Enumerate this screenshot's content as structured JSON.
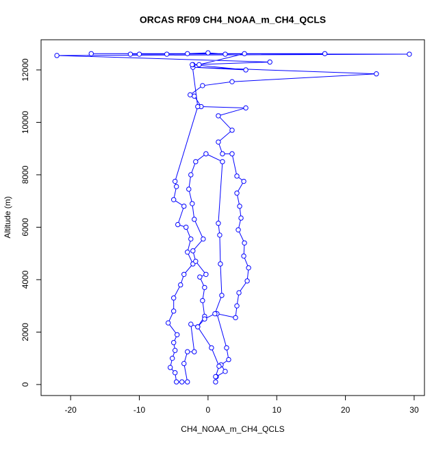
{
  "chart_data": {
    "type": "line",
    "title": "ORCAS RF09 CH4_NOAA_m_CH4_QCLS",
    "x_label": "CH4_NOAA_m_CH4_QCLS",
    "y_label": "Altitude (m)",
    "xlim": [
      -24.3,
      31.5
    ],
    "ylim": [
      -420,
      13150
    ],
    "xticks": [
      -20,
      -10,
      0,
      10,
      20,
      30
    ],
    "yticks": [
      0,
      2000,
      4000,
      6000,
      8000,
      10000,
      12000
    ],
    "series": [
      {
        "color": "#0000ff",
        "x": [
          1.1,
          1.2,
          2.5,
          1.9,
          3,
          2.7,
          1.3,
          4,
          4.2,
          4.5,
          5.7,
          5.9,
          5.2,
          5.3,
          4.4,
          4.8,
          4.6,
          4.2,
          5.2,
          4.2,
          3.5,
          2.1,
          1.5,
          3.5,
          1.5,
          5.5,
          -1,
          -2,
          -2.6,
          -0.8,
          3.5,
          24.5,
          -2.2,
          5.5,
          -2.2,
          9,
          -22,
          29.3,
          -17,
          17,
          -11.3,
          -10,
          -6,
          -3,
          0,
          2.5,
          5.3,
          -1.3,
          -2.3,
          -1.5,
          -4.8,
          -4.6,
          -5,
          -3.5,
          -4.4,
          -3.2,
          -2.5,
          -3,
          -2.2,
          -3.5,
          -4,
          -5,
          -5,
          -5.8,
          -4.5,
          -5,
          -4.8,
          -5.2,
          -5.5,
          -4.8,
          -4.6,
          -3.8,
          -3,
          -3.5,
          -3,
          -2,
          -2.5,
          -1.5,
          -0.5,
          -0.8,
          -0.5,
          -1.2,
          -0.3,
          -1.8,
          -2.2,
          -0.7,
          -2,
          -2.3,
          -2.8,
          -2.5,
          -1.8,
          -0.3,
          2.1,
          1.5,
          1.7,
          1.8,
          2,
          1,
          -0.5,
          -1.5,
          0.5,
          1.6,
          1.1
        ],
        "values": [
          100,
          300,
          500,
          750,
          950,
          1400,
          2700,
          2550,
          3000,
          3500,
          3950,
          4450,
          4900,
          5400,
          5900,
          6350,
          6800,
          7300,
          7750,
          7950,
          8800,
          8800,
          9250,
          9700,
          10250,
          10550,
          10600,
          11000,
          11050,
          11400,
          11550,
          11850,
          12100,
          12000,
          12200,
          12300,
          12550,
          12600,
          12620,
          12620,
          12600,
          12600,
          12600,
          12620,
          12650,
          12600,
          12620,
          12200,
          12200,
          10600,
          7750,
          7550,
          7050,
          6800,
          6100,
          6000,
          5550,
          5050,
          4600,
          4200,
          3800,
          3300,
          2800,
          2350,
          1900,
          1600,
          1300,
          1000,
          650,
          450,
          100,
          100,
          100,
          800,
          1250,
          1250,
          2300,
          2200,
          2600,
          3200,
          3700,
          4100,
          4200,
          4700,
          5100,
          5550,
          6300,
          6900,
          7450,
          8000,
          8500,
          8800,
          8500,
          6150,
          5700,
          4600,
          3400,
          2700,
          2500,
          2200,
          1400,
          700,
          300
        ]
      }
    ]
  }
}
